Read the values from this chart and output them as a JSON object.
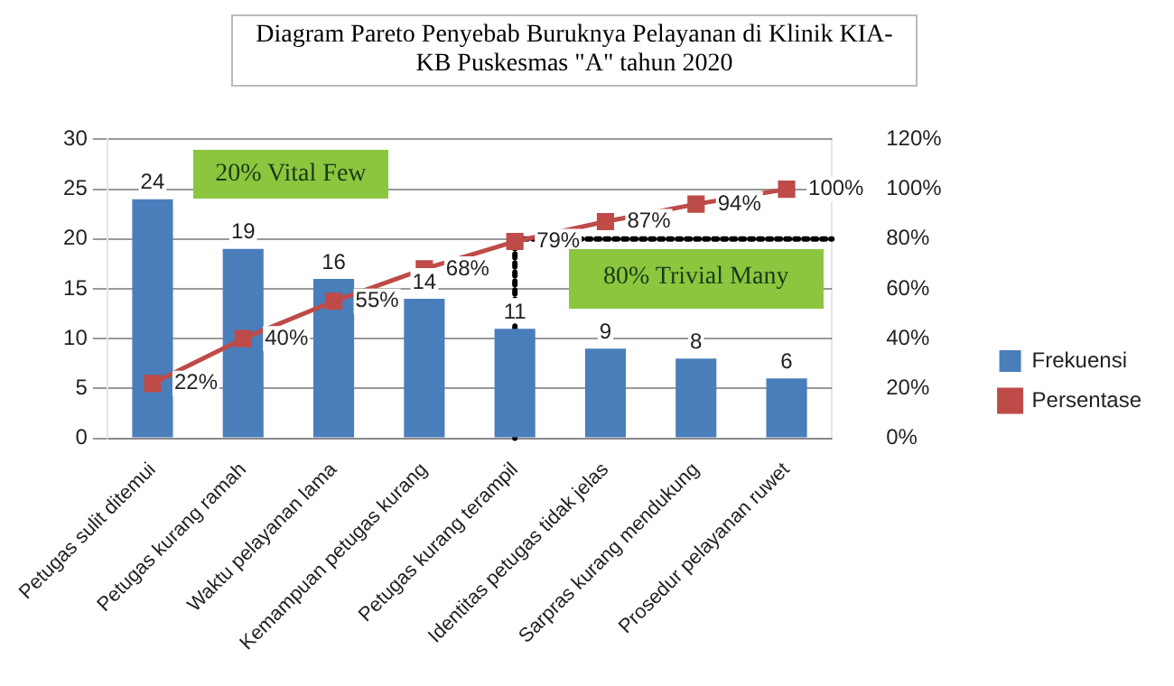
{
  "chart_data": {
    "type": "bar",
    "title": "Diagram Pareto Penyebab Buruknya Pelayanan di Klinik KIA-KB Puskesmas \"A\" tahun 2020",
    "categories": [
      "Petugas sulit ditemui",
      "Petugas kurang ramah",
      "Waktu pelayanan lama",
      "Kemampuan petugas kurang",
      "Petugas kurang terampil",
      "Identitas petugas tidak jelas",
      "Sarpras kurang mendukung",
      "Prosedur pelayanan ruwet"
    ],
    "series": [
      {
        "name": "Frekuensi",
        "color": "#4a7ebb",
        "values": [
          24,
          19,
          16,
          14,
          11,
          9,
          8,
          6
        ],
        "value_labels": [
          "24",
          "19",
          "16",
          "14",
          "11",
          "9",
          "8",
          "6"
        ]
      },
      {
        "name": "Persentase",
        "type": "line",
        "axis": "y2",
        "color": "#be4b48",
        "marker": "square",
        "values": [
          22,
          40,
          55,
          68,
          79,
          87,
          94,
          100
        ],
        "value_labels": [
          "22%",
          "40%",
          "55%",
          "68%",
          "79%",
          "87%",
          "94%",
          "100%"
        ]
      }
    ],
    "ylim": [
      0,
      30
    ],
    "yticks": [
      0,
      5,
      10,
      15,
      20,
      25,
      30
    ],
    "y2lim": [
      0,
      120
    ],
    "y2ticks": [
      {
        "value": 0,
        "label": "0%"
      },
      {
        "value": 20,
        "label": "20%"
      },
      {
        "value": 40,
        "label": "40%"
      },
      {
        "value": 60,
        "label": "60%"
      },
      {
        "value": 80,
        "label": "80%"
      },
      {
        "value": 100,
        "label": "100%"
      },
      {
        "value": 120,
        "label": "120%"
      }
    ],
    "ref_lines": [
      {
        "axis": "y2",
        "value": 80,
        "line_style": "dotted",
        "color": "#000000"
      },
      {
        "axis": "x",
        "value": "Petugas kurang terampil",
        "line_style": "dotted",
        "color": "#000000"
      }
    ],
    "annotations": [
      "20% Vital Few",
      "80% Trivial Many"
    ],
    "grid": "y",
    "legend": "right"
  }
}
